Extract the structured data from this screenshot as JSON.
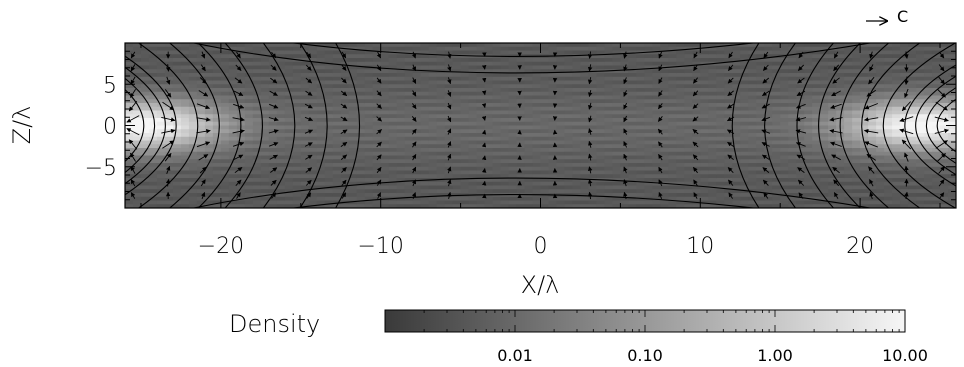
{
  "chart_data": {
    "type": "heatmap",
    "title": "",
    "xlabel": "X/λ",
    "ylabel": "Z/λ",
    "xlim": [
      -26,
      26
    ],
    "ylim": [
      -10,
      10
    ],
    "x_ticks": [
      -20,
      -10,
      0,
      10,
      20
    ],
    "x_tick_labels": [
      "−20",
      "−10",
      "0",
      "10",
      "20"
    ],
    "y_ticks": [
      -5,
      0,
      5
    ],
    "y_tick_labels": [
      "−5",
      "0",
      "5"
    ],
    "overlays": [
      "contour lines (field lines)",
      "velocity vector arrows"
    ],
    "vector_key_label": "C",
    "colorbar": {
      "label": "Density",
      "scale": "log",
      "range": [
        0.001,
        10
      ],
      "ticks": [
        0.01,
        0.1,
        1,
        10
      ],
      "tick_labels": [
        "0.01",
        "0.10",
        "1.00",
        "10.00"
      ],
      "color_low": "#3a3a3a",
      "color_high": "#f6f6f6"
    },
    "density_peaks": [
      {
        "x": -25,
        "z": 0
      },
      {
        "x": 24,
        "z": 0
      }
    ]
  }
}
